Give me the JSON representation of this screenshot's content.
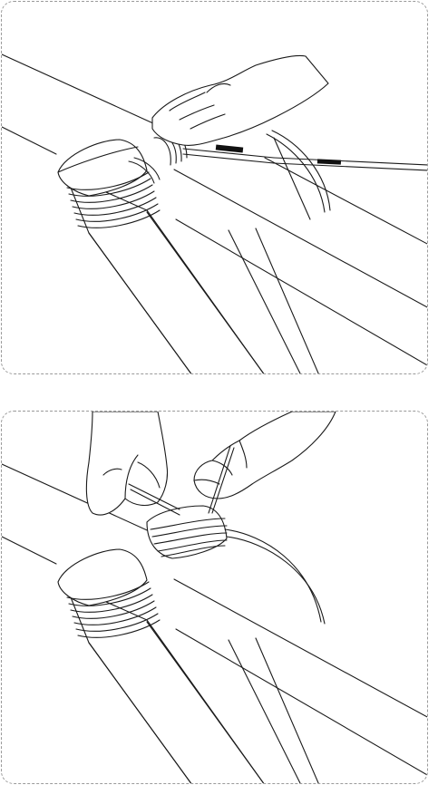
{
  "figure": {
    "panels": [
      {
        "id": "step-1",
        "subject": "cutting-binding"
      },
      {
        "id": "step-2",
        "subject": "tucking-binding-end"
      }
    ]
  },
  "colors": {
    "line": "#1a1a1a",
    "border": "#9a9a9a",
    "background": "#ffffff",
    "tool-grip": "#111111"
  },
  "icons": [
    "pruning-shears-icon",
    "cane-strip-icon"
  ]
}
